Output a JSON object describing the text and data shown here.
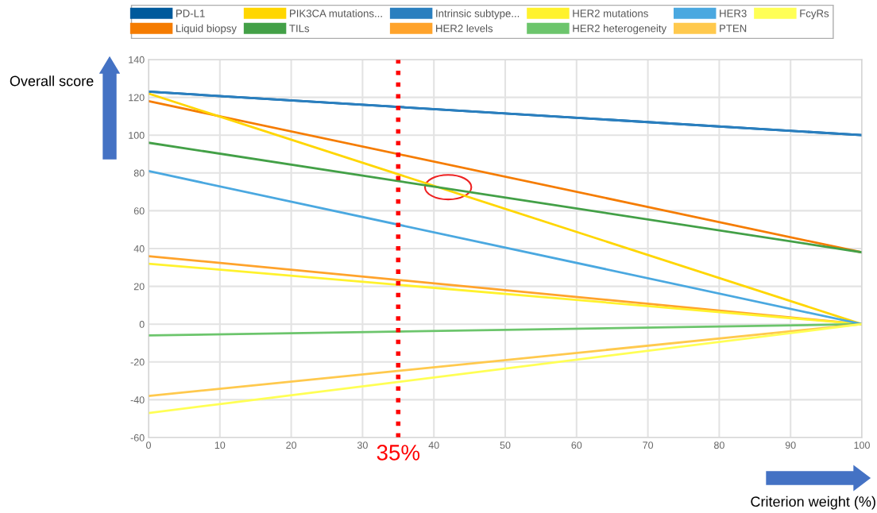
{
  "chart_data": {
    "type": "line",
    "xlabel": "Criterion weight (%)",
    "ylabel": "Overall score",
    "x": [
      0,
      100
    ],
    "series": [
      {
        "name": "PD-L1",
        "color": "#005a9c",
        "values": [
          123,
          100
        ]
      },
      {
        "name": "Liquid biopsy",
        "color": "#f57c00",
        "values": [
          118,
          38
        ]
      },
      {
        "name": "PIK3CA mutations...",
        "color": "#ffd600",
        "values": [
          122,
          0
        ]
      },
      {
        "name": "TILs",
        "color": "#43a047",
        "values": [
          96,
          38
        ]
      },
      {
        "name": "Intrinsic subtype...",
        "color": "#2a7fbf",
        "values": [
          123,
          100
        ]
      },
      {
        "name": "HER2 levels",
        "color": "#ffa32b",
        "values": [
          36,
          0
        ]
      },
      {
        "name": "HER2 mutations",
        "color": "#fff22d",
        "values": [
          32,
          0
        ]
      },
      {
        "name": "HER2 heterogeneity",
        "color": "#6cc56c",
        "values": [
          -6,
          0
        ]
      },
      {
        "name": "HER3",
        "color": "#4aa8e0",
        "values": [
          81,
          0
        ]
      },
      {
        "name": "PTEN",
        "color": "#ffc94d",
        "values": [
          -38,
          0
        ]
      },
      {
        "name": "FcyRs",
        "color": "#ffff55",
        "values": [
          -47,
          0
        ]
      }
    ],
    "xlim": [
      0,
      100
    ],
    "xticks": [
      0,
      10,
      20,
      30,
      40,
      50,
      60,
      70,
      80,
      90,
      100
    ],
    "ylim": [
      -60,
      140
    ],
    "yticks": [
      -60,
      -40,
      -20,
      0,
      20,
      40,
      60,
      80,
      100,
      120,
      140
    ],
    "ref_lines": [
      {
        "axis": "x",
        "value": 35,
        "label": "35%",
        "color": "#ff0000",
        "line_style": "dotted"
      }
    ],
    "grid": true,
    "legend": "top",
    "marker": "none",
    "line_style": "solid"
  }
}
